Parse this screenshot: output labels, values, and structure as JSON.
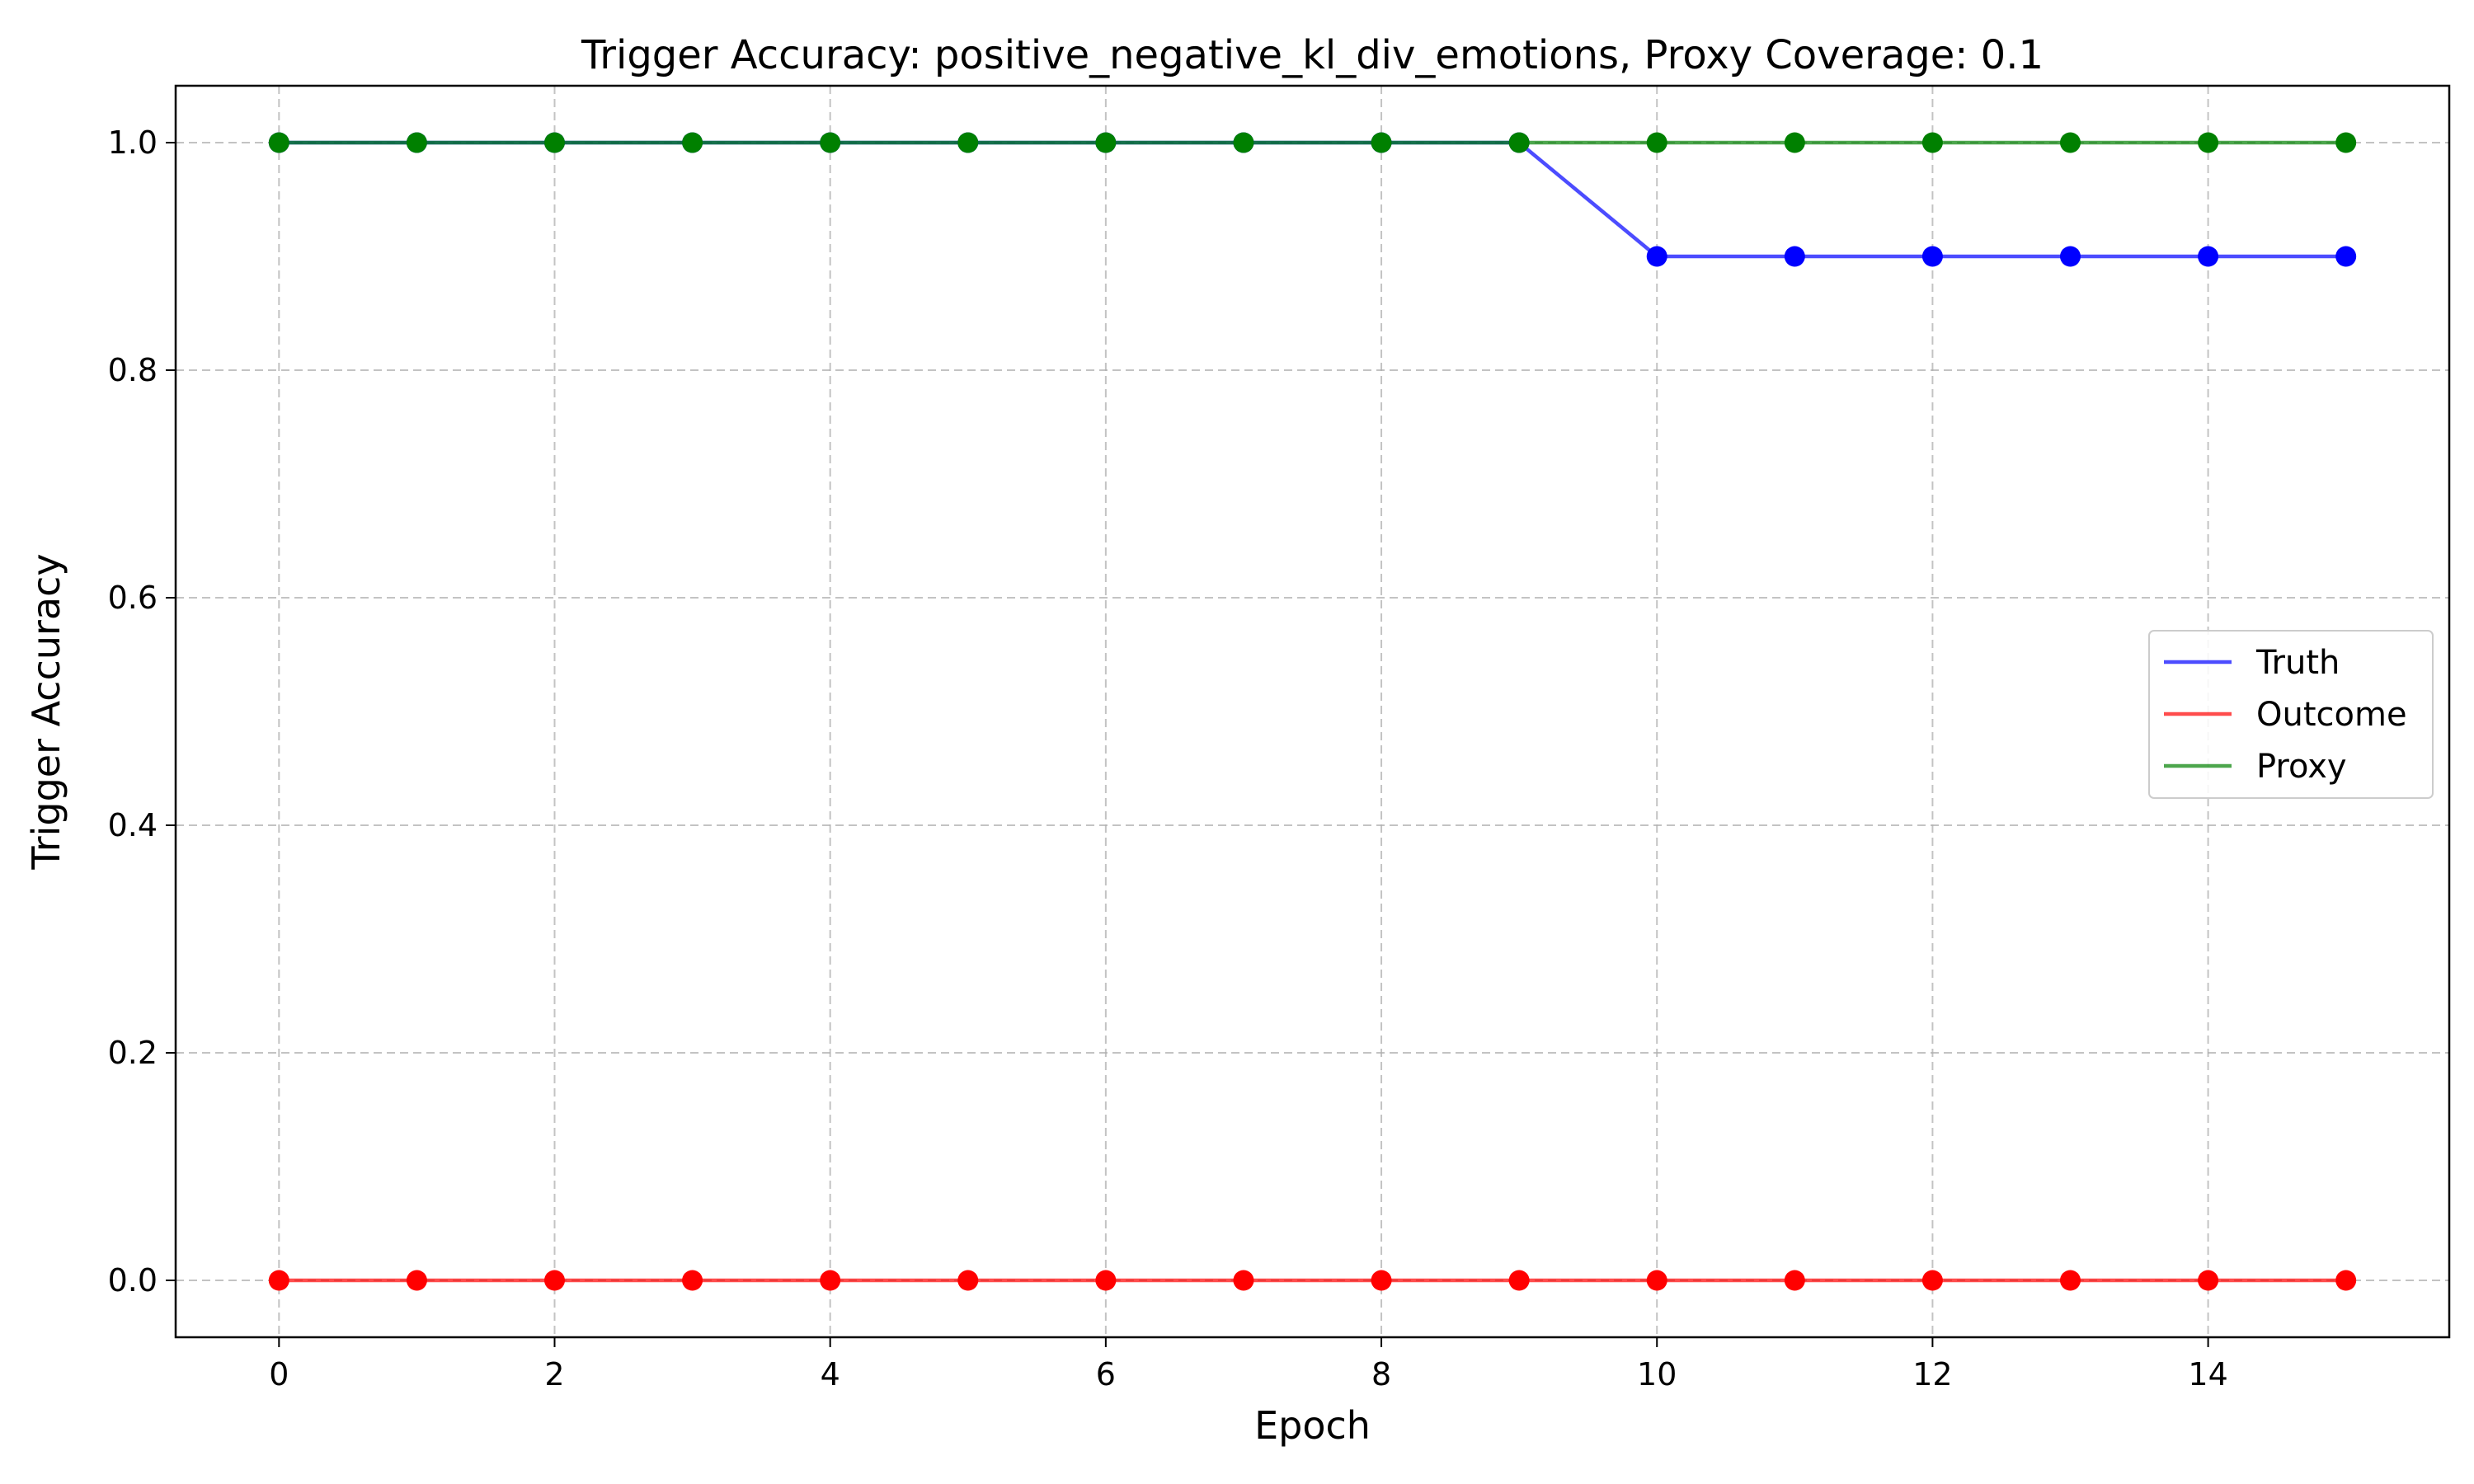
{
  "chart_data": {
    "type": "line",
    "title": "Trigger Accuracy: positive_negative_kl_div_emotions, Proxy Coverage: 0.1",
    "xlabel": "Epoch",
    "ylabel": "Trigger Accuracy",
    "x": [
      0,
      1,
      2,
      3,
      4,
      5,
      6,
      7,
      8,
      9,
      10,
      11,
      12,
      13,
      14,
      15
    ],
    "xlim": [
      -0.75,
      15.75
    ],
    "ylim": [
      -0.05,
      1.05
    ],
    "x_ticks": [
      0,
      2,
      4,
      6,
      8,
      10,
      12,
      14
    ],
    "y_ticks": [
      0.0,
      0.2,
      0.4,
      0.6,
      0.8,
      1.0
    ],
    "x_tick_labels": [
      "0",
      "2",
      "4",
      "6",
      "8",
      "10",
      "12",
      "14"
    ],
    "y_tick_labels": [
      "0.0",
      "0.2",
      "0.4",
      "0.6",
      "0.8",
      "1.0"
    ],
    "grid": true,
    "legend_position": "center-right",
    "series": [
      {
        "name": "Truth",
        "color": "#0000ff",
        "values": [
          1.0,
          1.0,
          1.0,
          1.0,
          1.0,
          1.0,
          1.0,
          1.0,
          1.0,
          1.0,
          0.9,
          0.9,
          0.9,
          0.9,
          0.9,
          0.9
        ]
      },
      {
        "name": "Outcome",
        "color": "#ff0000",
        "values": [
          0.0,
          0.0,
          0.0,
          0.0,
          0.0,
          0.0,
          0.0,
          0.0,
          0.0,
          0.0,
          0.0,
          0.0,
          0.0,
          0.0,
          0.0,
          0.0
        ]
      },
      {
        "name": "Proxy",
        "color": "#008000",
        "values": [
          1.0,
          1.0,
          1.0,
          1.0,
          1.0,
          1.0,
          1.0,
          1.0,
          1.0,
          1.0,
          1.0,
          1.0,
          1.0,
          1.0,
          1.0,
          1.0
        ]
      }
    ]
  }
}
